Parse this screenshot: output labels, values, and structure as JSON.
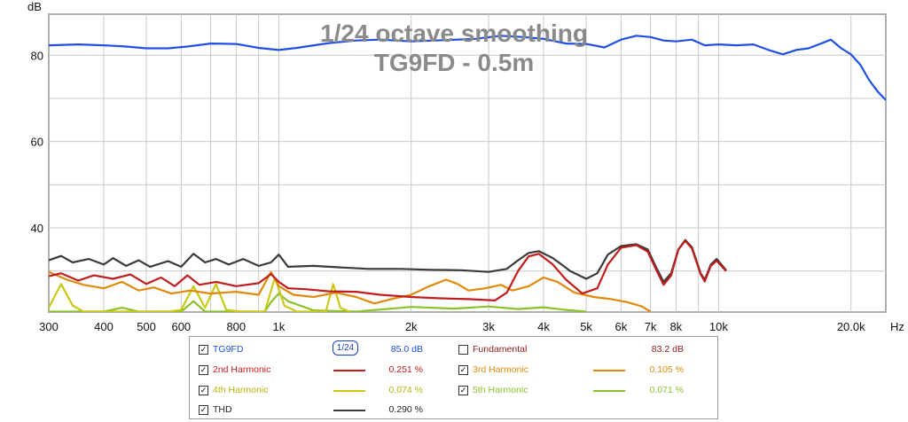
{
  "chart_data": {
    "type": "line",
    "title": "1/24 octave smoothing",
    "subtitle": "TG9FD - 0.5m",
    "ylabel": "dB",
    "xunit": "Hz",
    "xscale": "log",
    "xlim": [
      300,
      24000
    ],
    "ylim": [
      20.5,
      89.5
    ],
    "yticks": [
      40,
      60,
      80
    ],
    "xticks": [
      {
        "value": 300,
        "label": "300"
      },
      {
        "value": 400,
        "label": "400"
      },
      {
        "value": 500,
        "label": "500"
      },
      {
        "value": 600,
        "label": "600"
      },
      {
        "value": 800,
        "label": "800"
      },
      {
        "value": 1000,
        "label": "1k"
      },
      {
        "value": 2000,
        "label": "2k"
      },
      {
        "value": 3000,
        "label": "3k"
      },
      {
        "value": 4000,
        "label": "4k"
      },
      {
        "value": 5000,
        "label": "5k"
      },
      {
        "value": 6000,
        "label": "6k"
      },
      {
        "value": 7000,
        "label": "7k"
      },
      {
        "value": 8000,
        "label": "8k"
      },
      {
        "value": 10000,
        "label": "10k"
      },
      {
        "value": 20000,
        "label": "20.0k"
      }
    ],
    "grid": true,
    "series": [
      {
        "name": "TG9FD",
        "color": "#1f4fe6",
        "points": [
          [
            300,
            82.3
          ],
          [
            350,
            82.5
          ],
          [
            400,
            82.3
          ],
          [
            450,
            82.0
          ],
          [
            500,
            81.6
          ],
          [
            560,
            81.6
          ],
          [
            620,
            82.0
          ],
          [
            700,
            82.7
          ],
          [
            800,
            82.6
          ],
          [
            900,
            81.7
          ],
          [
            1000,
            81.2
          ],
          [
            1100,
            81.7
          ],
          [
            1300,
            82.8
          ],
          [
            1500,
            83.4
          ],
          [
            1700,
            83.6
          ],
          [
            2000,
            83.2
          ],
          [
            2400,
            83.5
          ],
          [
            2800,
            83.8
          ],
          [
            3200,
            84.5
          ],
          [
            3600,
            84.2
          ],
          [
            4000,
            83.8
          ],
          [
            4500,
            82.7
          ],
          [
            5000,
            82.6
          ],
          [
            5500,
            81.8
          ],
          [
            6000,
            83.6
          ],
          [
            6500,
            84.5
          ],
          [
            7000,
            84.2
          ],
          [
            7500,
            83.4
          ],
          [
            8000,
            83.2
          ],
          [
            8700,
            83.6
          ],
          [
            9300,
            82.3
          ],
          [
            10000,
            82.5
          ],
          [
            11000,
            82.3
          ],
          [
            12000,
            82.5
          ],
          [
            13000,
            81.2
          ],
          [
            14000,
            80.2
          ],
          [
            15000,
            81.2
          ],
          [
            16000,
            81.6
          ],
          [
            17000,
            82.6
          ],
          [
            18000,
            83.6
          ],
          [
            19000,
            81.6
          ],
          [
            20000,
            80.2
          ],
          [
            21000,
            77.8
          ],
          [
            22000,
            74.2
          ],
          [
            23000,
            71.6
          ],
          [
            24000,
            69.6
          ]
        ]
      },
      {
        "name": "THD",
        "color": "#3a3a3a",
        "points": [
          [
            300,
            32.5
          ],
          [
            320,
            33.5
          ],
          [
            340,
            32.0
          ],
          [
            370,
            32.8
          ],
          [
            400,
            31.5
          ],
          [
            420,
            33.0
          ],
          [
            450,
            31.2
          ],
          [
            480,
            32.5
          ],
          [
            510,
            31.0
          ],
          [
            560,
            32.3
          ],
          [
            600,
            31.0
          ],
          [
            640,
            34.0
          ],
          [
            680,
            32.0
          ],
          [
            720,
            32.8
          ],
          [
            770,
            31.5
          ],
          [
            830,
            32.8
          ],
          [
            900,
            31.2
          ],
          [
            960,
            32.0
          ],
          [
            1000,
            33.8
          ],
          [
            1050,
            31.0
          ],
          [
            1200,
            31.2
          ],
          [
            1400,
            30.8
          ],
          [
            1600,
            30.5
          ],
          [
            1900,
            30.5
          ],
          [
            2200,
            30.3
          ],
          [
            2600,
            30.2
          ],
          [
            3000,
            29.8
          ],
          [
            3300,
            30.5
          ],
          [
            3500,
            32.5
          ],
          [
            3700,
            34.2
          ],
          [
            3900,
            34.6
          ],
          [
            4200,
            33.0
          ],
          [
            4600,
            30.0
          ],
          [
            5000,
            28.2
          ],
          [
            5300,
            29.5
          ],
          [
            5600,
            33.8
          ],
          [
            6000,
            35.8
          ],
          [
            6500,
            36.2
          ],
          [
            6900,
            35.0
          ],
          [
            7200,
            31.0
          ],
          [
            7500,
            27.5
          ],
          [
            7800,
            29.5
          ],
          [
            8100,
            35.0
          ],
          [
            8400,
            37.2
          ],
          [
            8700,
            35.5
          ],
          [
            9100,
            29.5
          ],
          [
            9300,
            28.0
          ],
          [
            9600,
            31.5
          ],
          [
            9900,
            32.8
          ],
          [
            10400,
            30.2
          ]
        ]
      },
      {
        "name": "2nd Harmonic",
        "color": "#c11c1c",
        "points": [
          [
            300,
            28.8
          ],
          [
            320,
            29.5
          ],
          [
            350,
            27.8
          ],
          [
            380,
            29.0
          ],
          [
            420,
            28.2
          ],
          [
            460,
            29.2
          ],
          [
            500,
            27.0
          ],
          [
            540,
            28.5
          ],
          [
            580,
            26.5
          ],
          [
            620,
            29.0
          ],
          [
            660,
            26.8
          ],
          [
            720,
            27.5
          ],
          [
            800,
            26.5
          ],
          [
            900,
            27.2
          ],
          [
            960,
            29.3
          ],
          [
            1000,
            27.5
          ],
          [
            1050,
            26.0
          ],
          [
            1150,
            25.8
          ],
          [
            1300,
            25.3
          ],
          [
            1500,
            25.2
          ],
          [
            1700,
            24.5
          ],
          [
            2000,
            24.0
          ],
          [
            2300,
            23.7
          ],
          [
            2700,
            23.5
          ],
          [
            3100,
            23.2
          ],
          [
            3300,
            25.0
          ],
          [
            3500,
            30.0
          ],
          [
            3700,
            33.4
          ],
          [
            3900,
            34.0
          ],
          [
            4200,
            31.5
          ],
          [
            4500,
            28.0
          ],
          [
            4900,
            24.8
          ],
          [
            5300,
            26.0
          ],
          [
            5600,
            31.5
          ],
          [
            6000,
            35.4
          ],
          [
            6500,
            36.0
          ],
          [
            6900,
            34.5
          ],
          [
            7200,
            30.5
          ],
          [
            7500,
            26.8
          ],
          [
            7800,
            29.0
          ],
          [
            8100,
            35.0
          ],
          [
            8400,
            37.0
          ],
          [
            8700,
            35.2
          ],
          [
            9100,
            29.3
          ],
          [
            9300,
            27.6
          ],
          [
            9600,
            31.2
          ],
          [
            9900,
            32.4
          ],
          [
            10400,
            30.0
          ]
        ]
      },
      {
        "name": "3rd Harmonic",
        "color": "#e08a0c",
        "points": [
          [
            300,
            29.8
          ],
          [
            330,
            28.0
          ],
          [
            360,
            26.8
          ],
          [
            400,
            26.0
          ],
          [
            440,
            27.5
          ],
          [
            480,
            25.5
          ],
          [
            520,
            26.2
          ],
          [
            570,
            24.8
          ],
          [
            630,
            25.5
          ],
          [
            700,
            24.8
          ],
          [
            800,
            25.2
          ],
          [
            900,
            24.5
          ],
          [
            960,
            29.8
          ],
          [
            1000,
            26.5
          ],
          [
            1080,
            24.5
          ],
          [
            1200,
            24.0
          ],
          [
            1350,
            25.0
          ],
          [
            1500,
            24.0
          ],
          [
            1650,
            22.5
          ],
          [
            1800,
            23.5
          ],
          [
            2000,
            24.5
          ],
          [
            2200,
            26.5
          ],
          [
            2400,
            28.0
          ],
          [
            2550,
            27.0
          ],
          [
            2700,
            25.5
          ],
          [
            2950,
            26.0
          ],
          [
            3200,
            26.8
          ],
          [
            3400,
            25.5
          ],
          [
            3700,
            26.5
          ],
          [
            4000,
            28.5
          ],
          [
            4300,
            27.5
          ],
          [
            4700,
            25.0
          ],
          [
            5200,
            24.0
          ],
          [
            5700,
            23.5
          ],
          [
            6200,
            22.8
          ],
          [
            6700,
            21.8
          ],
          [
            7000,
            20.6
          ]
        ]
      },
      {
        "name": "4th Harmonic",
        "color": "#c9c912",
        "points": [
          [
            300,
            21.5
          ],
          [
            320,
            27.0
          ],
          [
            340,
            22.0
          ],
          [
            360,
            20.6
          ],
          [
            560,
            20.6
          ],
          [
            600,
            21.0
          ],
          [
            640,
            26.5
          ],
          [
            680,
            21.5
          ],
          [
            720,
            27.0
          ],
          [
            760,
            21.0
          ],
          [
            820,
            20.6
          ],
          [
            930,
            20.6
          ],
          [
            980,
            28.5
          ],
          [
            1030,
            22.0
          ],
          [
            1100,
            20.6
          ],
          [
            1280,
            20.6
          ],
          [
            1330,
            27.0
          ],
          [
            1380,
            21.5
          ],
          [
            1450,
            20.6
          ]
        ]
      },
      {
        "name": "5th Harmonic",
        "color": "#8cc02a",
        "points": [
          [
            300,
            20.6
          ],
          [
            400,
            20.6
          ],
          [
            440,
            21.5
          ],
          [
            480,
            20.6
          ],
          [
            600,
            20.6
          ],
          [
            640,
            23.0
          ],
          [
            680,
            20.6
          ],
          [
            930,
            20.6
          ],
          [
            960,
            22.8
          ],
          [
            1000,
            24.8
          ],
          [
            1050,
            23.0
          ],
          [
            1200,
            20.9
          ],
          [
            1500,
            20.6
          ],
          [
            2000,
            21.7
          ],
          [
            2500,
            21.3
          ],
          [
            3000,
            21.8
          ],
          [
            3500,
            21.2
          ],
          [
            4000,
            21.6
          ],
          [
            4500,
            21.0
          ],
          [
            5000,
            20.6
          ]
        ]
      }
    ]
  },
  "legend": {
    "rows": [
      {
        "name": "TG9FD",
        "checked": true,
        "color": "#1f4fe6",
        "value": "85.0 dB",
        "smoothing": "1/24"
      },
      {
        "name": "Fundamental",
        "checked": false,
        "color": "#c11c1c",
        "value": "83.2 dB"
      },
      {
        "name": "2nd Harmonic",
        "checked": true,
        "color": "#c11c1c",
        "value": "0.251 %"
      },
      {
        "name": "3rd Harmonic",
        "checked": true,
        "color": "#e08a0c",
        "value": "0.105 %"
      },
      {
        "name": "4th Harmonic",
        "checked": true,
        "color": "#c9c912",
        "value": "0.074 %"
      },
      {
        "name": "5th Harmonic",
        "checked": true,
        "color": "#8cc02a",
        "value": "0.071 %"
      },
      {
        "name": "THD",
        "checked": true,
        "color": "#3a3a3a",
        "value": "0.290 %"
      }
    ]
  }
}
